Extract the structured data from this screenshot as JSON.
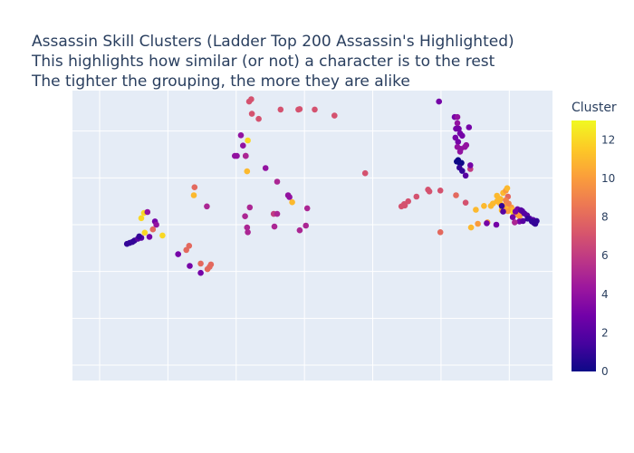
{
  "chart_data": {
    "type": "scatter",
    "title_lines": [
      "Assassin Skill Clusters (Ladder Top 200 Assassin's Highlighted)",
      "This highlights how similar (or not) a character is to the rest",
      "The tighter the grouping, the more they are alike"
    ],
    "xlabel": "",
    "ylabel": "",
    "xlim": [
      0,
      6.5
    ],
    "ylim": [
      0,
      6
    ],
    "grid": true,
    "show_tick_labels": false,
    "colorbar": {
      "title": "Cluster",
      "range": [
        0,
        13
      ],
      "ticks": [
        0,
        2,
        4,
        6,
        8,
        10,
        12
      ],
      "colorscale": [
        "#0d0887",
        "#46039f",
        "#7201a8",
        "#9c179e",
        "#bd3786",
        "#d8576b",
        "#ed7953",
        "#fb9f3a",
        "#fdca26",
        "#f0f921"
      ]
    },
    "colors": {
      "plot_bg": "#e5ecf6",
      "grid": "#ffffff",
      "text": "#2a3f5f"
    },
    "points": [
      [
        2.19,
        5.63,
        7
      ],
      [
        2.22,
        5.68,
        7
      ],
      [
        2.23,
        5.37,
        7
      ],
      [
        2.33,
        5.26,
        7
      ],
      [
        2.65,
        5.46,
        7
      ],
      [
        2.91,
        5.46,
        7
      ],
      [
        2.93,
        5.47,
        7
      ],
      [
        3.15,
        5.46,
        7
      ],
      [
        3.44,
        5.33,
        7
      ],
      [
        2.07,
        4.91,
        4
      ],
      [
        2.1,
        4.69,
        4
      ],
      [
        2.01,
        4.47,
        4
      ],
      [
        1.98,
        4.47,
        4
      ],
      [
        2.14,
        4.47,
        4
      ],
      [
        2.17,
        4.8,
        12
      ],
      [
        2.16,
        4.14,
        11
      ],
      [
        2.14,
        4.47,
        5
      ],
      [
        2.43,
        4.21,
        4
      ],
      [
        2.6,
        3.92,
        5
      ],
      [
        2.76,
        3.63,
        4
      ],
      [
        2.78,
        3.59,
        4
      ],
      [
        2.55,
        3.23,
        6
      ],
      [
        2.6,
        3.23,
        5
      ],
      [
        2.82,
        3.48,
        11
      ],
      [
        2.56,
        2.96,
        5
      ],
      [
        2.13,
        3.18,
        5
      ],
      [
        2.16,
        2.94,
        5
      ],
      [
        2.2,
        3.37,
        5
      ],
      [
        2.17,
        2.84,
        5
      ],
      [
        3.04,
        3.35,
        5
      ],
      [
        2.93,
        2.88,
        5
      ],
      [
        3.02,
        2.98,
        5
      ],
      [
        3.89,
        4.1,
        7
      ],
      [
        1.39,
        3.8,
        8
      ],
      [
        1.38,
        3.63,
        11
      ],
      [
        1.57,
        3.39,
        5
      ],
      [
        0.61,
        3.14,
        12
      ],
      [
        0.65,
        3.25,
        12
      ],
      [
        0.7,
        3.27,
        4
      ],
      [
        0.81,
        3.07,
        3
      ],
      [
        0.83,
        3.0,
        4
      ],
      [
        0.78,
        2.9,
        8
      ],
      [
        0.92,
        2.77,
        12
      ],
      [
        0.66,
        2.83,
        12
      ],
      [
        0.73,
        2.74,
        3
      ],
      [
        0.4,
        2.59,
        1
      ],
      [
        0.44,
        2.61,
        1
      ],
      [
        0.48,
        2.63,
        1
      ],
      [
        0.51,
        2.66,
        1
      ],
      [
        0.56,
        2.7,
        2
      ],
      [
        0.61,
        2.72,
        2
      ],
      [
        0.58,
        2.75,
        1
      ],
      [
        1.31,
        2.55,
        8
      ],
      [
        1.27,
        2.46,
        8
      ],
      [
        1.15,
        2.37,
        3
      ],
      [
        1.32,
        2.12,
        3
      ],
      [
        1.48,
        2.17,
        8
      ],
      [
        1.63,
        2.15,
        8
      ],
      [
        1.61,
        2.1,
        8
      ],
      [
        1.58,
        2.05,
        8
      ],
      [
        1.48,
        1.97,
        3
      ],
      [
        4.52,
        3.5,
        7
      ],
      [
        4.64,
        3.6,
        7
      ],
      [
        4.81,
        3.75,
        7
      ],
      [
        4.99,
        3.73,
        7
      ],
      [
        4.83,
        3.71,
        7
      ],
      [
        4.42,
        3.39,
        7
      ],
      [
        4.46,
        3.44,
        7
      ],
      [
        4.47,
        3.41,
        7
      ],
      [
        4.99,
        2.84,
        8
      ],
      [
        5.22,
        3.63,
        8
      ],
      [
        5.28,
        4.56,
        4
      ],
      [
        5.28,
        4.95,
        3
      ],
      [
        5.29,
        4.62,
        4
      ],
      [
        5.37,
        4.7,
        4
      ],
      [
        5.43,
        4.19,
        6
      ],
      [
        4.97,
        5.63,
        3
      ],
      [
        5.2,
        5.3,
        3
      ],
      [
        5.24,
        5.3,
        4
      ],
      [
        5.24,
        5.17,
        4
      ],
      [
        5.26,
        5.05,
        3
      ],
      [
        5.22,
        5.05,
        3
      ],
      [
        5.25,
        4.77,
        3
      ],
      [
        5.35,
        4.66,
        4
      ],
      [
        5.41,
        5.08,
        3
      ],
      [
        5.21,
        4.86,
        3
      ],
      [
        5.24,
        4.66,
        4
      ],
      [
        5.31,
        4.9,
        3
      ],
      [
        5.23,
        4.35,
        0
      ],
      [
        5.25,
        4.38,
        0
      ],
      [
        5.28,
        4.31,
        0
      ],
      [
        5.3,
        4.32,
        0
      ],
      [
        5.27,
        4.22,
        1
      ],
      [
        5.31,
        4.15,
        1
      ],
      [
        5.36,
        4.05,
        2
      ],
      [
        5.43,
        4.27,
        3
      ],
      [
        5.36,
        3.47,
        7
      ],
      [
        5.51,
        3.32,
        11
      ],
      [
        5.63,
        3.4,
        11
      ],
      [
        5.73,
        3.4,
        11
      ],
      [
        5.76,
        3.45,
        11
      ],
      [
        5.82,
        3.5,
        11
      ],
      [
        5.87,
        3.55,
        11
      ],
      [
        5.91,
        3.68,
        11
      ],
      [
        5.95,
        3.73,
        10
      ],
      [
        5.97,
        3.78,
        11
      ],
      [
        5.82,
        3.62,
        11
      ],
      [
        5.86,
        3.46,
        11
      ],
      [
        5.9,
        3.4,
        11
      ],
      [
        5.94,
        3.42,
        10
      ],
      [
        5.99,
        3.35,
        11
      ],
      [
        6.03,
        3.37,
        10
      ],
      [
        6.05,
        3.31,
        11
      ],
      [
        5.93,
        3.3,
        10
      ],
      [
        5.89,
        3.31,
        11
      ],
      [
        5.98,
        3.29,
        10
      ],
      [
        6.06,
        3.26,
        12
      ],
      [
        6.1,
        3.22,
        10
      ],
      [
        6.12,
        3.24,
        10
      ],
      [
        6.15,
        3.18,
        10
      ],
      [
        5.98,
        3.6,
        8
      ],
      [
        5.95,
        3.52,
        9
      ],
      [
        5.99,
        3.45,
        9
      ],
      [
        5.89,
        3.4,
        1
      ],
      [
        5.91,
        3.28,
        2
      ],
      [
        6.05,
        3.16,
        3
      ],
      [
        6.09,
        3.28,
        3
      ],
      [
        6.12,
        3.33,
        3
      ],
      [
        6.17,
        3.31,
        2
      ],
      [
        6.19,
        3.29,
        2
      ],
      [
        6.22,
        3.24,
        2
      ],
      [
        6.26,
        3.2,
        2
      ],
      [
        6.3,
        3.13,
        2
      ],
      [
        6.35,
        3.1,
        2
      ],
      [
        6.36,
        3.04,
        2
      ],
      [
        6.15,
        3.07,
        3
      ],
      [
        6.2,
        3.08,
        2
      ],
      [
        6.08,
        3.05,
        5
      ],
      [
        6.27,
        3.13,
        1
      ],
      [
        6.33,
        3.07,
        1
      ],
      [
        6.38,
        3.02,
        1
      ],
      [
        6.4,
        3.08,
        1
      ],
      [
        5.68,
        3.05,
        10
      ],
      [
        5.54,
        3.02,
        10
      ],
      [
        5.44,
        2.94,
        11
      ],
      [
        5.67,
        3.03,
        3
      ],
      [
        5.81,
        3.0,
        3
      ]
    ]
  }
}
